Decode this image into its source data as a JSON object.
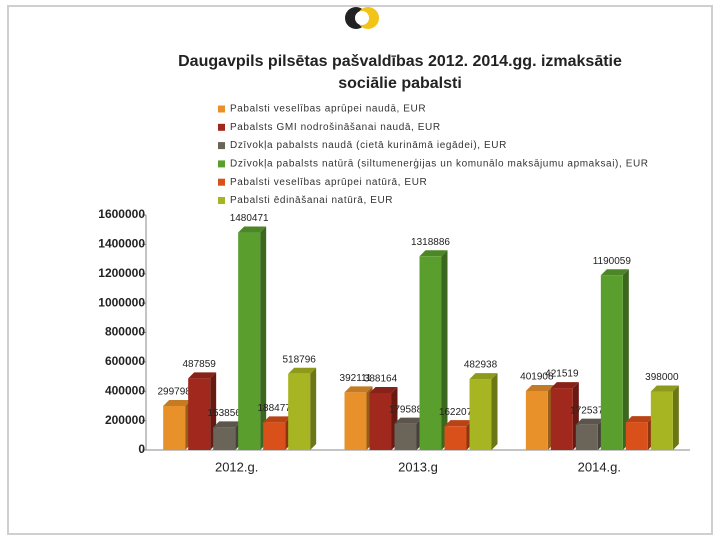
{
  "chart_data": {
    "type": "bar3d",
    "title": "Daugavpils pilsētas pašvaldības 2012. 2014.gg. izmaksātie sociālie pabalsti",
    "categories": [
      "2012.g.",
      "2013.g",
      "2014.g."
    ],
    "series": [
      {
        "name": "Pabalsti veselības aprūpei naudā, EUR",
        "color": "#e8912a",
        "values": [
          299798,
          392111,
          401908
        ]
      },
      {
        "name": "Pabalsts GMI nodrošināšanai naudā, EUR",
        "color": "#a0281c",
        "values": [
          487859,
          388164,
          421519
        ]
      },
      {
        "name": "Dzīvokļa pabalsts naudā (cietā kurināmā iegādei), EUR",
        "color": "#6b6459",
        "values": [
          153856,
          179588,
          172537
        ]
      },
      {
        "name": "Dzīvokļa pabalsts natūrā (siltumenerģijas un komunālo maksājumu apmaksai), EUR",
        "color": "#5a9e2e",
        "values": [
          1480471,
          1318886,
          1190059
        ]
      },
      {
        "name": "Pabalsti veselības aprūpei natūrā, EUR",
        "color": "#d9501a",
        "values": [
          188477,
          162207,
          190000
        ],
        "value_labels": [
          "188477",
          "162207",
          null
        ]
      },
      {
        "name": "Pabalsti ēdināšanai natūrā, EUR",
        "color": "#a6b521",
        "values": [
          518796,
          482938,
          398000
        ]
      }
    ],
    "ylim": [
      0,
      1600000
    ],
    "yticks": [
      0,
      200000,
      400000,
      600000,
      800000,
      1000000,
      1200000,
      1400000,
      1600000
    ]
  }
}
